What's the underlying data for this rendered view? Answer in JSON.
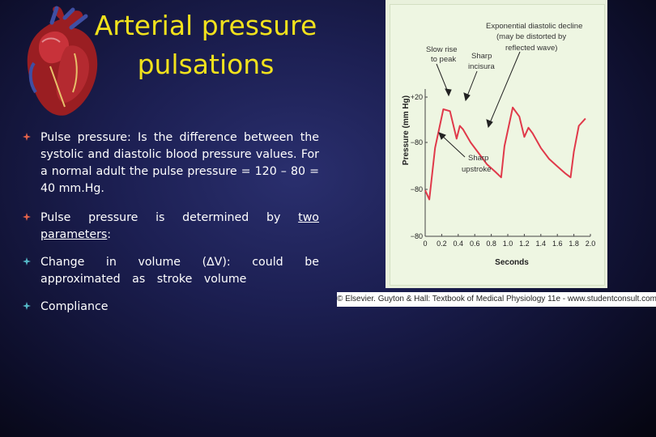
{
  "slide": {
    "title_line1": "Arterial pressure",
    "title_line2": "pulsations",
    "title_color": "#f2e21c",
    "bullet_color": "#e0614a",
    "bullet_color_alt": "#54b7c6"
  },
  "bullets": [
    {
      "text": "Pulse pressure: Is the difference between the systolic and diastolic blood pressure values. For a normal adult the pulse pressure = 120 – 80 = 40 mm.Hg."
    },
    {
      "text_pre": " Pulse pressure is determined by ",
      "text_u": "two parameters",
      "text_post": ":"
    },
    {
      "text": "Change in volume (∆V): could be approximated as stroke volume"
    },
    {
      "text": "Compliance"
    }
  ],
  "figure": {
    "annotation_exponential": "Exponential diastolic decline",
    "annotation_distorted_1": "(may be distorted by",
    "annotation_distorted_2": "reflected wave)",
    "annotation_slow_rise_1": "Slow rise",
    "annotation_slow_rise_2": "to peak",
    "annotation_incisura_1": "Sharp",
    "annotation_incisura_2": "incisura",
    "annotation_upstroke_1": "Sharp",
    "annotation_upstroke_2": "upstroke",
    "caption": "© Elsevier. Guyton & Hall: Textbook of Medical Physiology 11e - www.studentconsult.com"
  },
  "chart_data": {
    "type": "line",
    "title": "",
    "xlabel": "Seconds",
    "ylabel": "Pressure (mm Hg)",
    "x_ticks": [
      "0",
      "0.2",
      "0.4",
      "0.6",
      "0.8",
      "1.0",
      "1.2",
      "1.4",
      "1.6",
      "1.8",
      "2.0"
    ],
    "y_ticks": [
      "+20",
      "−80",
      "−80",
      "−80"
    ],
    "xlim": [
      0,
      2.0
    ],
    "series": [
      {
        "color": "#e0394a",
        "x": [
          0.0,
          0.05,
          0.12,
          0.22,
          0.3,
          0.38,
          0.42,
          0.46,
          0.55,
          0.65,
          0.75,
          0.85,
          0.92,
          0.96,
          1.06,
          1.14,
          1.2,
          1.25,
          1.3,
          1.4,
          1.5,
          1.6,
          1.7,
          1.76,
          1.8,
          1.86,
          1.94
        ],
        "y": [
          75,
          70,
          98,
          119,
          118,
          103,
          110,
          108,
          101,
          95,
          89,
          85,
          82,
          99,
          120,
          115,
          104,
          109,
          106,
          98,
          92,
          88,
          84,
          82,
          96,
          110,
          114
        ]
      }
    ]
  }
}
